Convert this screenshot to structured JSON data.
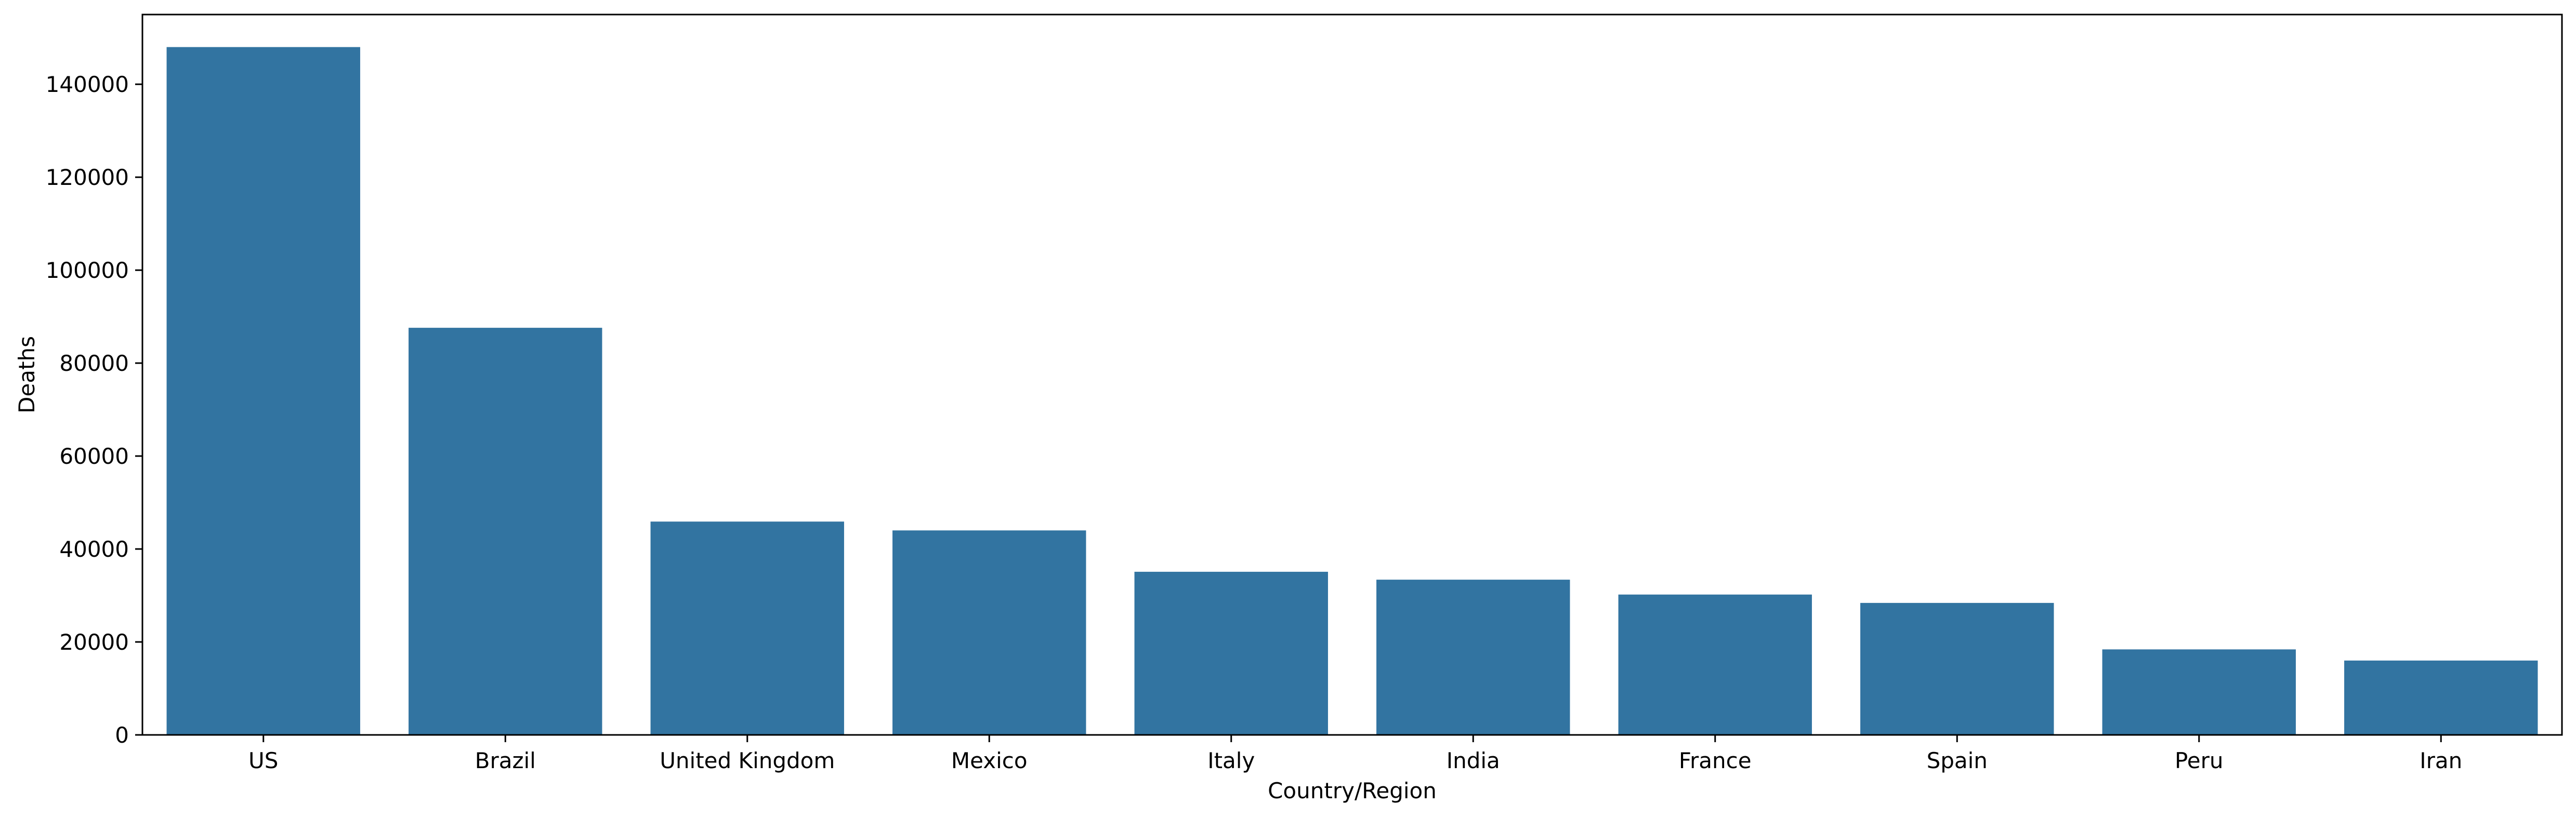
{
  "chart_data": {
    "type": "bar",
    "title": "",
    "xlabel": "Country/Region",
    "ylabel": "Deaths",
    "categories": [
      "US",
      "Brazil",
      "United Kingdom",
      "Mexico",
      "Italy",
      "India",
      "France",
      "Spain",
      "Peru",
      "Iran"
    ],
    "values": [
      148000,
      87600,
      45900,
      44000,
      35100,
      33400,
      30200,
      28400,
      18400,
      16000
    ],
    "ylim": [
      0,
      155000
    ],
    "yticks": [
      0,
      20000,
      40000,
      60000,
      80000,
      100000,
      120000,
      140000
    ],
    "ytick_labels": [
      "0",
      "20000",
      "40000",
      "60000",
      "80000",
      "100000",
      "120000",
      "140000"
    ],
    "grid": false,
    "legend": "none",
    "bar_color": "#3274a1",
    "axis_color": "#000000"
  }
}
